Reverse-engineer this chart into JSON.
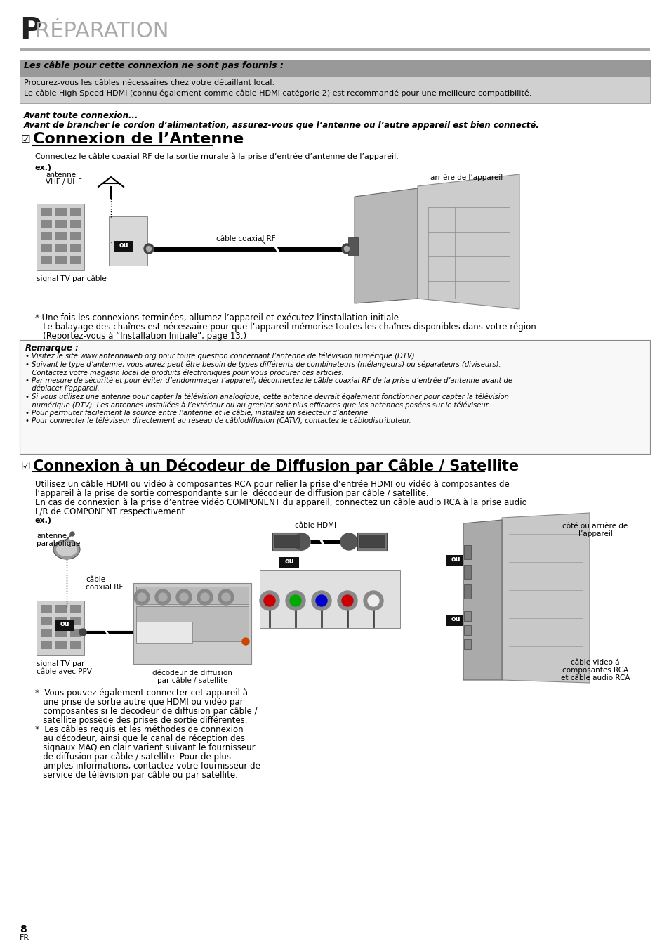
{
  "bg_color": "#ffffff",
  "title_P": "P",
  "title_rest": "RÉPARATION",
  "hr_color": "#999999",
  "cable_header_text": "Les câble pour cette connexion ne sont pas fournis :",
  "cable_body1": "Procurez-vous les câbles nécessaires chez votre détaillant local.",
  "cable_body2": "Le câble High Speed HDMI (connu également comme câble HDMI catégorie 2) est recommandé pour une meilleure compatibilité.",
  "avant1": "Avant toute connexion...",
  "avant2": "Avant de brancher le cordon d’alimentation, assurez-vous que l’antenne ou l’autre appareil est bien connecté.",
  "section1_title": "Connexion de l’Antenne",
  "section1_desc": "Connectez le câble coaxial RF de la sortie murale à la prise d’entrée d’antenne de l’appareil.",
  "ex_label": "ex.)",
  "antenne_label1": "antenne",
  "antenne_label2": "VHF / UHF",
  "arriere_label": "arrière de l’appareil",
  "cable_coaxial_label": "câble coaxial RF",
  "ou_label": "ou",
  "signal_tv_label": "signal TV par câble",
  "note1_line1": "* Une fois les connexions terminées, allumez l’appareil et exécutez l’installation initiale.",
  "note1_line2": "   Le balayage des chaînes est nécessaire pour que l’appareil mémorise toutes les chaînes disponibles dans votre région.",
  "note1_line3": "   (Reportez-vous à “Installation Initiale”, page 13.)",
  "remarque_title": "Remarque :",
  "remarque_b1": "• Visitez le site www.antennaweb.org pour toute question concernant l’antenne de télévision numérique (DTV).",
  "remarque_b2a": "• Suivant le type d’antenne, vous aurez peut-être besoin de types différents de combinateurs (mélangeurs) ou séparateurs (diviseurs).",
  "remarque_b2b": "   Contactez votre magasin local de produits électroniques pour vous procurer ces articles.",
  "remarque_b3a": "• Par mesure de sécurité et pour éviter d’endommager l’appareil, déconnectez le câble coaxial RF de la prise d’entrée d’antenne avant de",
  "remarque_b3b": "   déplacer l’appareil.",
  "remarque_b4a": "• Si vous utilisez une antenne pour capter la télévision analogique, cette antenne devrait également fonctionner pour capter la télévision",
  "remarque_b4b": "   numérique (DTV). Les antennes installées à l’extérieur ou au grenier sont plus efficaces que les antennes posées sur le téléviseur.",
  "remarque_b5": "• Pour permuter facilement la source entre l’antenne et le câble, installez un sélecteur d’antenne.",
  "remarque_b6": "• Pour connecter le téléviseur directement au réseau de câblodiffusion (CATV), contactez le câblodistributeur.",
  "section2_title": "Connexion à un Décodeur de Diffusion par Câble / Satellite",
  "section2_desc1": "Utilisez un câble HDMI ou vidéo à composantes RCA pour relier la prise d’entrée HDMI ou vidéo à composantes de",
  "section2_desc2": "l’appareil à la prise de sortie correspondante sur le  décodeur de diffusion par câble / satellite.",
  "section2_desc3": "En cas de connexion à la prise d’entrée vidéo COMPONENT du appareil, connectez un câble audio RCA à la prise audio",
  "section2_desc4": "L/R de COMPONENT respectivement.",
  "cable_hdmi_label": "câble HDMI",
  "antenne_para1": "antenne",
  "antenne_para2": "parabolique",
  "cable_coax2a": "câble",
  "cable_coax2b": "coaxial RF",
  "signal_tv2a": "signal TV par",
  "signal_tv2b": "câble avec PPV",
  "decodeur_a": "décodeur de diffusion",
  "decodeur_b": "par câble / satellite",
  "cote_arriere1": "côté ou arrière de",
  "cote_arriere2": "l’appareil",
  "cable_video1": "câble video á",
  "cable_video2": "composantes RCA",
  "cable_video3": "et câble audio RCA",
  "note2_line1": "*  Vous pouvez également connecter cet appareil à",
  "note2_line2": "   une prise de sortie autre que HDMI ou vidéo par",
  "note2_line3": "   composantes si le décodeur de diffusion par câble /",
  "note2_line4": "   satellite possède des prises de sortie différentes.",
  "note2_line5": "*  Les câbles requis et les méthodes de connexion",
  "note2_line6": "   au décodeur, ainsi que le canal de réception des",
  "note2_line7": "   signaux MAQ en clair varient suivant le fournisseur",
  "note2_line8": "   de diffusion par câble / satellite. Pour de plus",
  "note2_line9": "   amples informations, contactez votre fournisseur de",
  "note2_line10": "   service de télévision par câble ou par satellite.",
  "page_num": "8",
  "page_lang": "FR"
}
